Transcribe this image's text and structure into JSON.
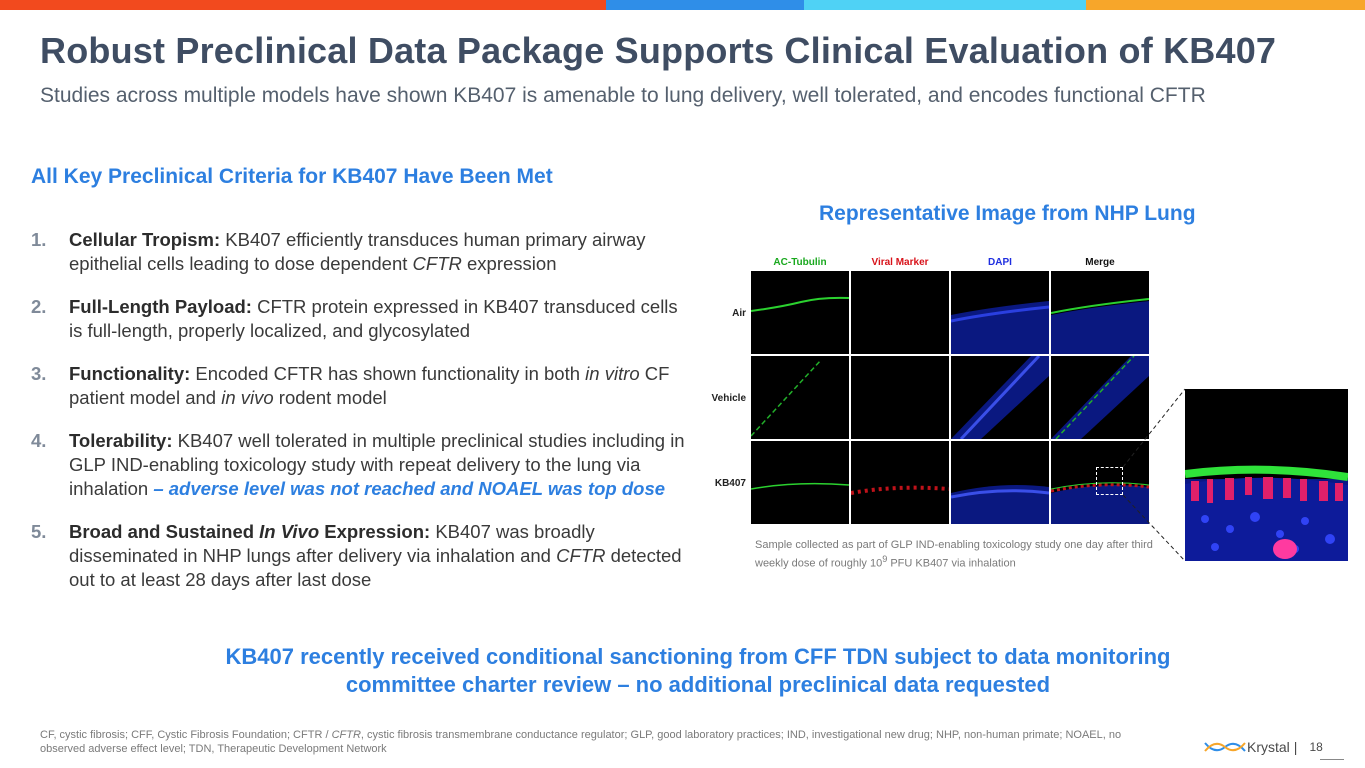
{
  "colors": {
    "top_bar": [
      "#f24a1e",
      "#2f8ee8",
      "#4fd2f5",
      "#f7a62a"
    ],
    "accent": "#2d7fe0",
    "title": "#3f4d63"
  },
  "title": "Robust Preclinical Data Package Supports Clinical Evaluation of KB407",
  "subtitle": "Studies across multiple models have shown KB407 is amenable to lung delivery, well tolerated, and encodes functional CFTR",
  "criteria_heading": "All Key Preclinical Criteria for KB407 Have Been Met",
  "criteria": [
    {
      "num": "1.",
      "label": "Cellular Tropism:",
      "t1": " KB407 efficiently transduces human primary airway epithelial cells leading to dose dependent ",
      "i1": "CFTR",
      "t2": " expression"
    },
    {
      "num": "2.",
      "label": "Full-Length Payload:",
      "t1": " CFTR protein expressed in KB407 transduced cells is full-length, properly localized, and glycosylated"
    },
    {
      "num": "3.",
      "label": "Functionality:",
      "t1": " Encoded CFTR has shown functionality in both ",
      "i1": "in vitro",
      "t2": " CF patient model and ",
      "i2": "in vivo",
      "t3": " rodent model"
    },
    {
      "num": "4.",
      "label": "Tolerability:",
      "t1": " KB407 well tolerated in multiple preclinical studies including in GLP IND-enabling toxicology study with repeat delivery to the lung via inhalation ",
      "highlight": "– adverse level was not reached and NOAEL was top dose"
    },
    {
      "num": "5.",
      "label_a": "Broad and Sustained ",
      "label_b": "In Vivo",
      "label_c": " Expression:",
      "t1": " KB407 was broadly disseminated in NHP lungs after delivery via inhalation and ",
      "i1": "CFTR",
      "t2": " detected out to at least 28 days after last dose"
    }
  ],
  "image_heading": "Representative Image from NHP Lung",
  "figure": {
    "columns": [
      {
        "label": "AC-Tubulin",
        "color": "#19a81e"
      },
      {
        "label": "Viral Marker",
        "color": "#d8121a"
      },
      {
        "label": "DAPI",
        "color": "#1f2ee0"
      },
      {
        "label": "Merge",
        "color": "#111111"
      }
    ],
    "rows": [
      "Air",
      "Vehicle",
      "KB407"
    ],
    "caption_a": "Sample collected as part of GLP IND-enabling toxicology study one day after third weekly dose of roughly 10",
    "caption_sup": "9",
    "caption_b": " PFU KB407 via inhalation"
  },
  "conclusion": "KB407 recently received conditional sanctioning from CFF TDN subject to data monitoring committee charter review – no additional preclinical data requested",
  "footnote_a": "CF, cystic fibrosis; CFF, Cystic Fibrosis Foundation; CFTR / ",
  "footnote_i": "CFTR",
  "footnote_b": ", cystic fibrosis transmembrane conductance regulator; GLP, good laboratory practices; IND, investigational new drug; NHP, non-human primate; NOAEL, no observed adverse effect level; TDN, Therapeutic Development Network",
  "footer": {
    "company": "Krystal",
    "separator": "|",
    "page_number": "18"
  }
}
